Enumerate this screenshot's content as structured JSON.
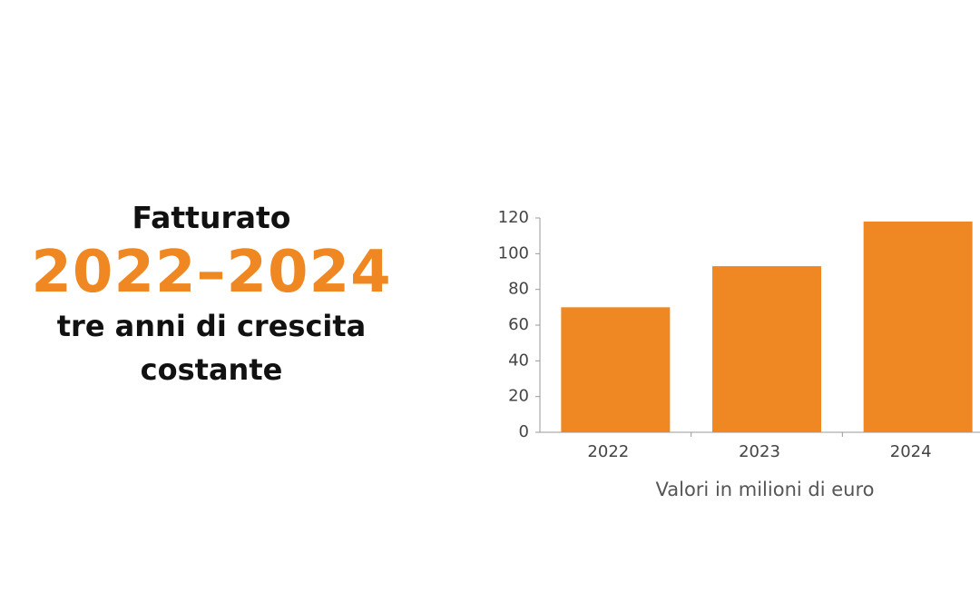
{
  "chart_data": {
    "type": "bar",
    "title": "Fatturato",
    "highlight": "2022–2024",
    "subtitle": "tre anni di crescita costante",
    "xlabel": "Valori in milioni di euro",
    "categories": [
      "2022",
      "2023",
      "2024"
    ],
    "values": [
      70,
      93,
      118
    ],
    "color": "#ef8822",
    "ylim": [
      0,
      120
    ],
    "yticks": [
      0,
      20,
      40,
      60,
      80,
      100,
      120
    ],
    "grid": false
  }
}
